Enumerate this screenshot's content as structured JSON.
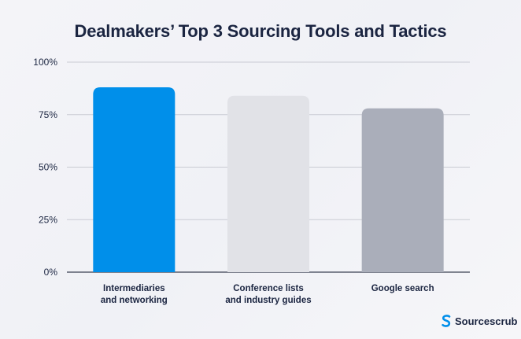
{
  "chart_data": {
    "type": "bar",
    "title": "Dealmakers’ Top 3 Sourcing Tools and Tactics",
    "categories": [
      [
        "Intermediaries",
        "and networking"
      ],
      [
        "Conference lists",
        "and industry guides"
      ],
      [
        "Google search"
      ]
    ],
    "values": [
      88,
      84,
      78
    ],
    "bar_colors": [
      "#008fea",
      "#e1e2e7",
      "#aaaeba"
    ],
    "ylim": [
      0,
      100
    ],
    "yticks": [
      "0%",
      "25%",
      "50%",
      "75%",
      "100%"
    ],
    "ytick_values": [
      0,
      25,
      50,
      75,
      100
    ],
    "xlabel": "",
    "ylabel": "",
    "grid": true
  },
  "brand": {
    "name": "Sourcescrub",
    "color": "#008fea"
  }
}
